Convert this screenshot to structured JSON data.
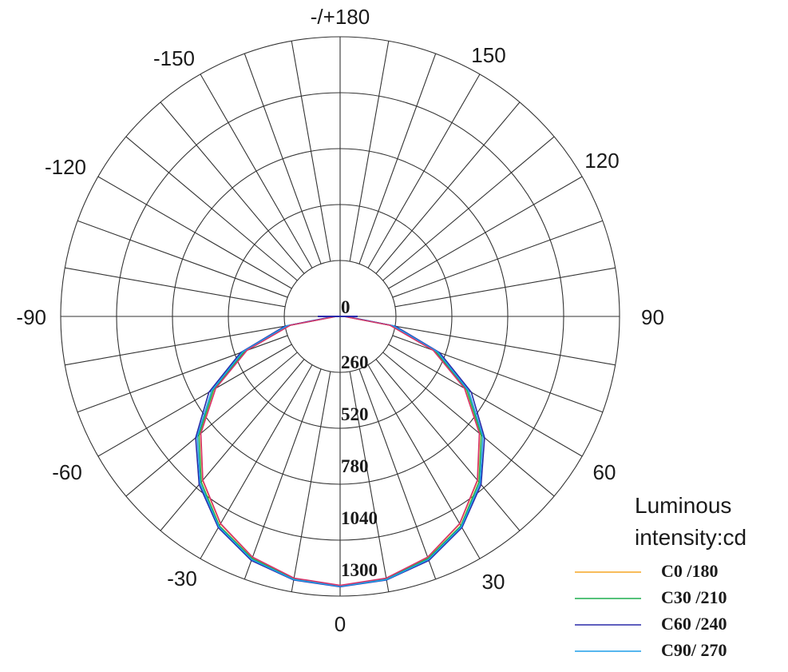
{
  "chart_data": {
    "type": "polar",
    "unit_label": "Luminous intensity:cd",
    "rings": [
      0,
      260,
      520,
      780,
      1040,
      1300
    ],
    "ring_labels": [
      "0",
      "260",
      "520",
      "780",
      "1040",
      "1300"
    ],
    "angle_labels": [
      {
        "angle": 180,
        "text": "-/+180"
      },
      {
        "angle": 150,
        "text": "150"
      },
      {
        "angle": -150,
        "text": "-150"
      },
      {
        "angle": 120,
        "text": "120"
      },
      {
        "angle": -120,
        "text": "-120"
      },
      {
        "angle": 90,
        "text": "90"
      },
      {
        "angle": -90,
        "text": "-90"
      },
      {
        "angle": 60,
        "text": "60"
      },
      {
        "angle": -60,
        "text": "-60"
      },
      {
        "angle": 30,
        "text": "30"
      },
      {
        "angle": -30,
        "text": "-30"
      },
      {
        "angle": 0,
        "text": "0"
      }
    ],
    "angles": [
      -90,
      -80,
      -70,
      -60,
      -50,
      -40,
      -30,
      -20,
      -10,
      0,
      10,
      20,
      30,
      40,
      50,
      60,
      70,
      80,
      90
    ],
    "series": [
      {
        "name": "C0 /180",
        "color": "#f5a623",
        "values": [
          20,
          240,
          470,
          680,
          860,
          1010,
          1130,
          1210,
          1255,
          1270,
          1255,
          1210,
          1130,
          1010,
          860,
          680,
          470,
          240,
          20
        ]
      },
      {
        "name": "C30 /210",
        "color": "#1fae4f",
        "values": [
          20,
          250,
          480,
          690,
          870,
          1020,
          1140,
          1215,
          1258,
          1272,
          1258,
          1215,
          1140,
          1020,
          870,
          690,
          480,
          250,
          20
        ]
      },
      {
        "name": "C60 /240",
        "color": "#2a2aa8",
        "values": [
          30,
          265,
          500,
          715,
          890,
          1035,
          1150,
          1225,
          1262,
          1275,
          1262,
          1225,
          1150,
          1035,
          890,
          715,
          500,
          265,
          30
        ]
      },
      {
        "name": "C90/ 270",
        "color": "#1e9ee8",
        "values": [
          25,
          255,
          490,
          700,
          880,
          1028,
          1145,
          1220,
          1260,
          1273,
          1260,
          1220,
          1145,
          1028,
          880,
          700,
          490,
          255,
          25
        ]
      },
      {
        "name": "",
        "color": "#d6336c",
        "values": [
          18,
          238,
          468,
          678,
          858,
          1008,
          1128,
          1208,
          1253,
          1268,
          1253,
          1208,
          1128,
          1008,
          858,
          678,
          468,
          238,
          18
        ]
      }
    ]
  }
}
